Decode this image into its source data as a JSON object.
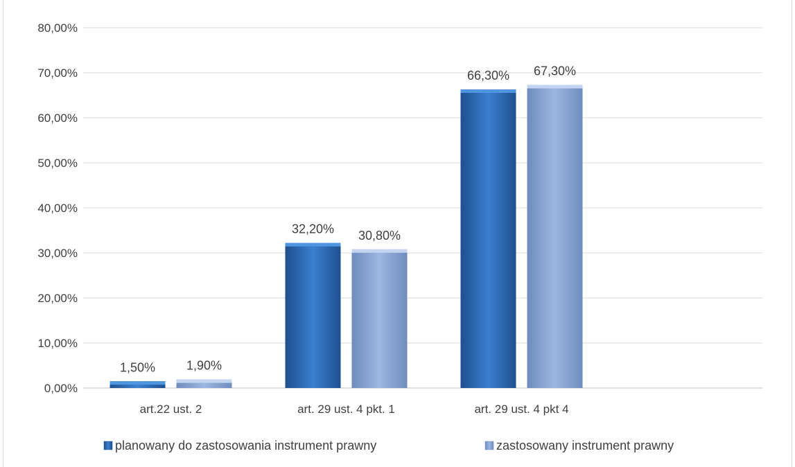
{
  "chart_data": {
    "type": "bar",
    "categories": [
      "art.22 ust. 2",
      "art. 29 ust. 4 pkt. 1",
      "art. 29 ust. 4 pkt 4"
    ],
    "series": [
      {
        "name": "planowany do zastosowania instrument prawny",
        "values": [
          1.5,
          32.2,
          66.3
        ],
        "data_labels": [
          "1,50%",
          "32,20%",
          "66,30%"
        ],
        "color": "#2e74c4"
      },
      {
        "name": "zastosowany instrument prawny",
        "values": [
          1.9,
          30.8,
          67.3
        ],
        "data_labels": [
          "1,90%",
          "30,80%",
          "67,30%"
        ],
        "color": "#8eaadb"
      }
    ],
    "ylim": [
      0,
      80
    ],
    "y_ticks": [
      0,
      10,
      20,
      30,
      40,
      50,
      60,
      70,
      80
    ],
    "y_tick_labels": [
      "0,00%",
      "10,00%",
      "20,00%",
      "30,00%",
      "40,00%",
      "50,00%",
      "60,00%",
      "70,00%",
      "80,00%"
    ],
    "grid": true,
    "legend_position": "bottom",
    "title": "",
    "xlabel": "",
    "ylabel": ""
  }
}
